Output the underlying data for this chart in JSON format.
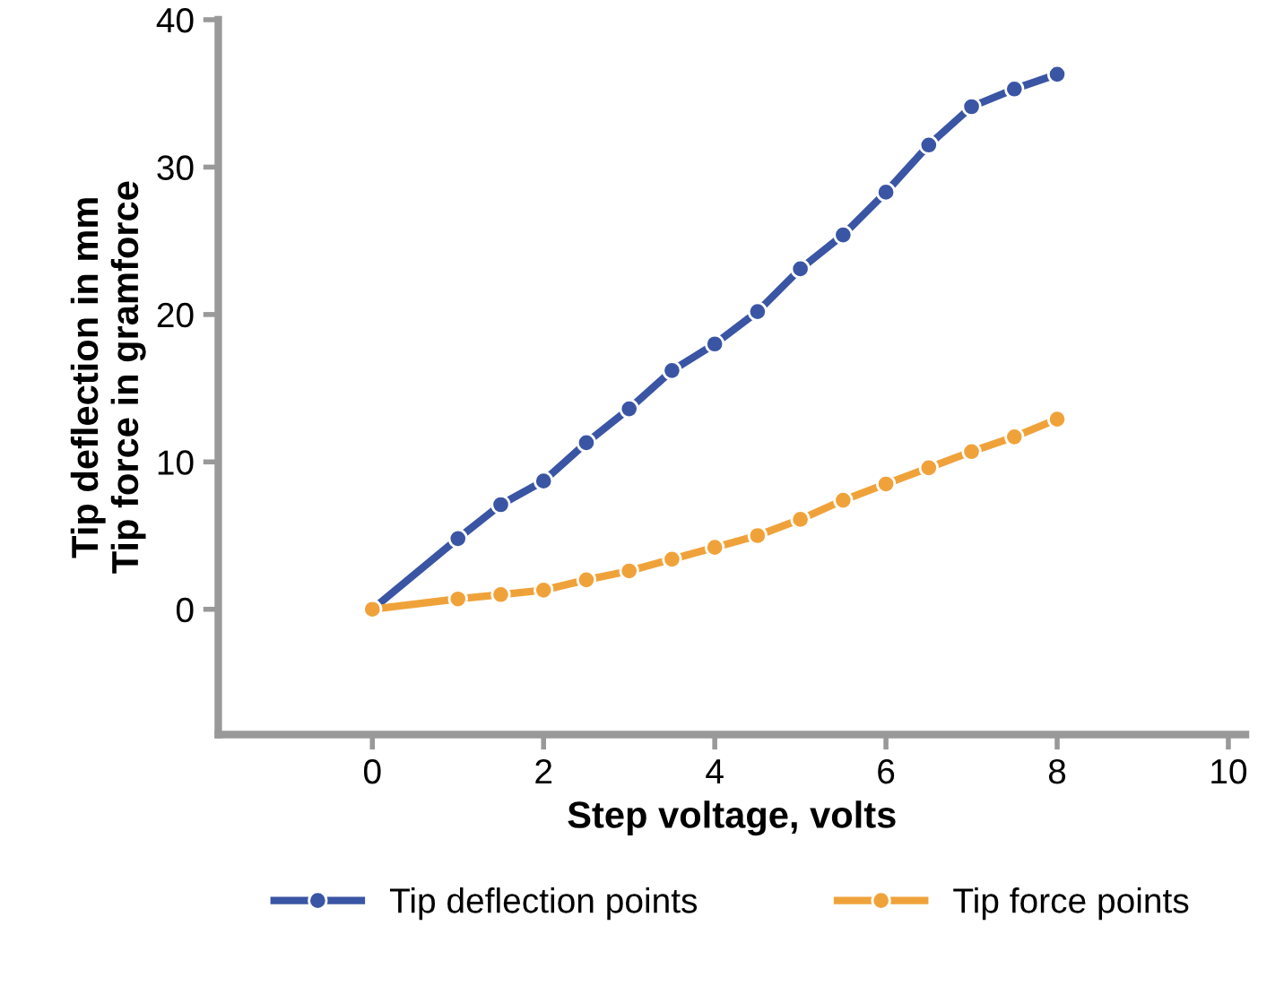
{
  "chart_data": {
    "type": "line",
    "xlabel": "Step voltage, volts",
    "ylabel": "Tip deflection in mm\nTip force in gramforce",
    "x": [
      0,
      1,
      1.5,
      2,
      2.5,
      3,
      3.5,
      4,
      4.5,
      5,
      5.5,
      6,
      6.5,
      7,
      7.5,
      8
    ],
    "series": [
      {
        "name": "Tip deflection points",
        "color": "#3a55a4",
        "values": [
          0,
          4.8,
          7.1,
          8.7,
          11.3,
          13.6,
          16.2,
          18.0,
          20.2,
          23.1,
          25.4,
          28.3,
          31.5,
          34.1,
          35.3,
          36.3
        ]
      },
      {
        "name": "Tip force points",
        "color": "#f0a23a",
        "values": [
          0,
          0.7,
          1.0,
          1.3,
          2.0,
          2.6,
          3.4,
          4.2,
          5.0,
          6.1,
          7.4,
          8.5,
          9.6,
          10.7,
          11.7,
          12.9
        ]
      }
    ],
    "xlim": [
      -1.8,
      10.2
    ],
    "ylim": [
      -8.5,
      40
    ],
    "xticks": [
      0,
      2,
      4,
      6,
      8,
      10
    ],
    "yticks": [
      0,
      10,
      20,
      30,
      40
    ],
    "grid": false,
    "legend": "bottom",
    "marker": "circle",
    "line_style": "solid"
  }
}
